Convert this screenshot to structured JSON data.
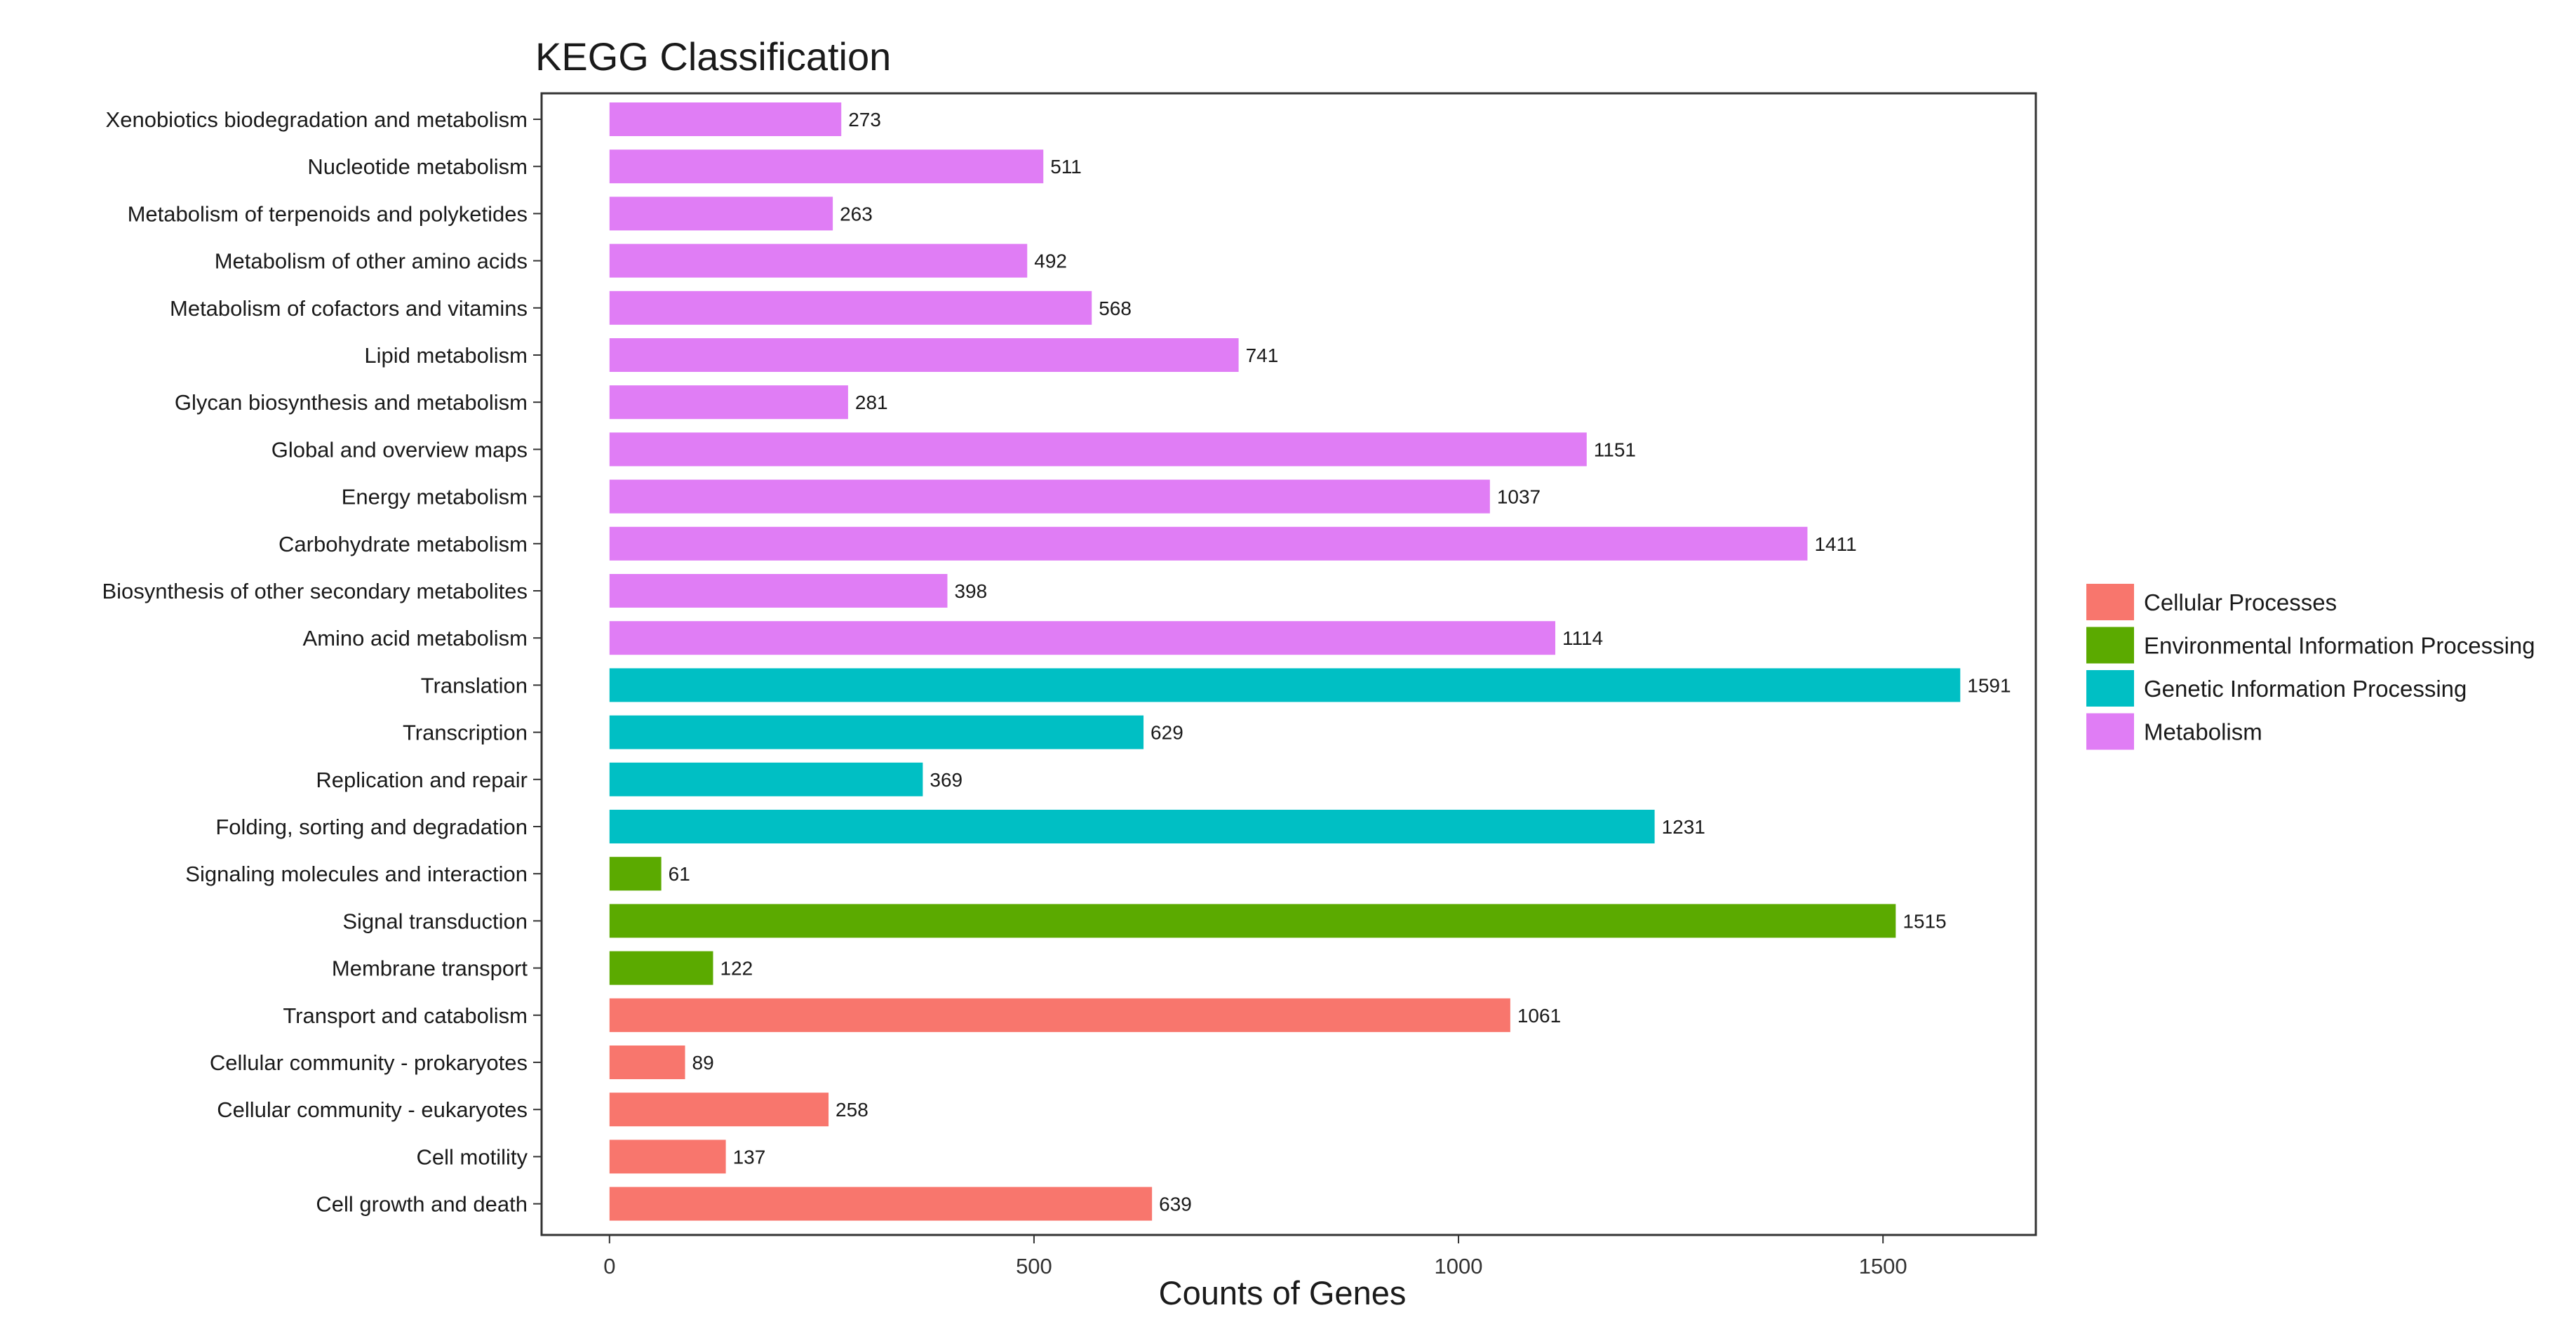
{
  "chart_data": {
    "type": "bar",
    "orientation": "horizontal",
    "title": "KEGG Classification",
    "xlabel": "Counts of Genes",
    "ylabel": "",
    "xlim": [
      -80,
      1680
    ],
    "xticks": [
      0,
      500,
      1000,
      1500
    ],
    "grid": false,
    "legend_position": "right",
    "groups": [
      {
        "name": "Cellular Processes",
        "color": "#F8766D"
      },
      {
        "name": "Environmental Information Processing",
        "color": "#5BAA00"
      },
      {
        "name": "Genetic Information Processing",
        "color": "#00BFC4"
      },
      {
        "name": "Metabolism",
        "color": "#E07DF5"
      }
    ],
    "bars": [
      {
        "label": "Xenobiotics biodegradation and metabolism",
        "value": 273,
        "group": "Metabolism"
      },
      {
        "label": "Nucleotide metabolism",
        "value": 511,
        "group": "Metabolism"
      },
      {
        "label": "Metabolism of terpenoids and polyketides",
        "value": 263,
        "group": "Metabolism"
      },
      {
        "label": "Metabolism of other amino acids",
        "value": 492,
        "group": "Metabolism"
      },
      {
        "label": "Metabolism of cofactors and vitamins",
        "value": 568,
        "group": "Metabolism"
      },
      {
        "label": "Lipid metabolism",
        "value": 741,
        "group": "Metabolism"
      },
      {
        "label": "Glycan biosynthesis and metabolism",
        "value": 281,
        "group": "Metabolism"
      },
      {
        "label": "Global and overview maps",
        "value": 1151,
        "group": "Metabolism"
      },
      {
        "label": "Energy metabolism",
        "value": 1037,
        "group": "Metabolism"
      },
      {
        "label": "Carbohydrate metabolism",
        "value": 1411,
        "group": "Metabolism"
      },
      {
        "label": "Biosynthesis of other secondary metabolites",
        "value": 398,
        "group": "Metabolism"
      },
      {
        "label": "Amino acid metabolism",
        "value": 1114,
        "group": "Metabolism"
      },
      {
        "label": "Translation",
        "value": 1591,
        "group": "Genetic Information Processing"
      },
      {
        "label": "Transcription",
        "value": 629,
        "group": "Genetic Information Processing"
      },
      {
        "label": "Replication and repair",
        "value": 369,
        "group": "Genetic Information Processing"
      },
      {
        "label": "Folding, sorting and degradation",
        "value": 1231,
        "group": "Genetic Information Processing"
      },
      {
        "label": "Signaling molecules and interaction",
        "value": 61,
        "group": "Environmental Information Processing"
      },
      {
        "label": "Signal transduction",
        "value": 1515,
        "group": "Environmental Information Processing"
      },
      {
        "label": "Membrane transport",
        "value": 122,
        "group": "Environmental Information Processing"
      },
      {
        "label": "Transport and catabolism",
        "value": 1061,
        "group": "Cellular Processes"
      },
      {
        "label": "Cellular community - prokaryotes",
        "value": 89,
        "group": "Cellular Processes"
      },
      {
        "label": "Cellular community - eukaryotes",
        "value": 258,
        "group": "Cellular Processes"
      },
      {
        "label": "Cell motility",
        "value": 137,
        "group": "Cellular Processes"
      },
      {
        "label": "Cell growth and death",
        "value": 639,
        "group": "Cellular Processes"
      }
    ]
  }
}
